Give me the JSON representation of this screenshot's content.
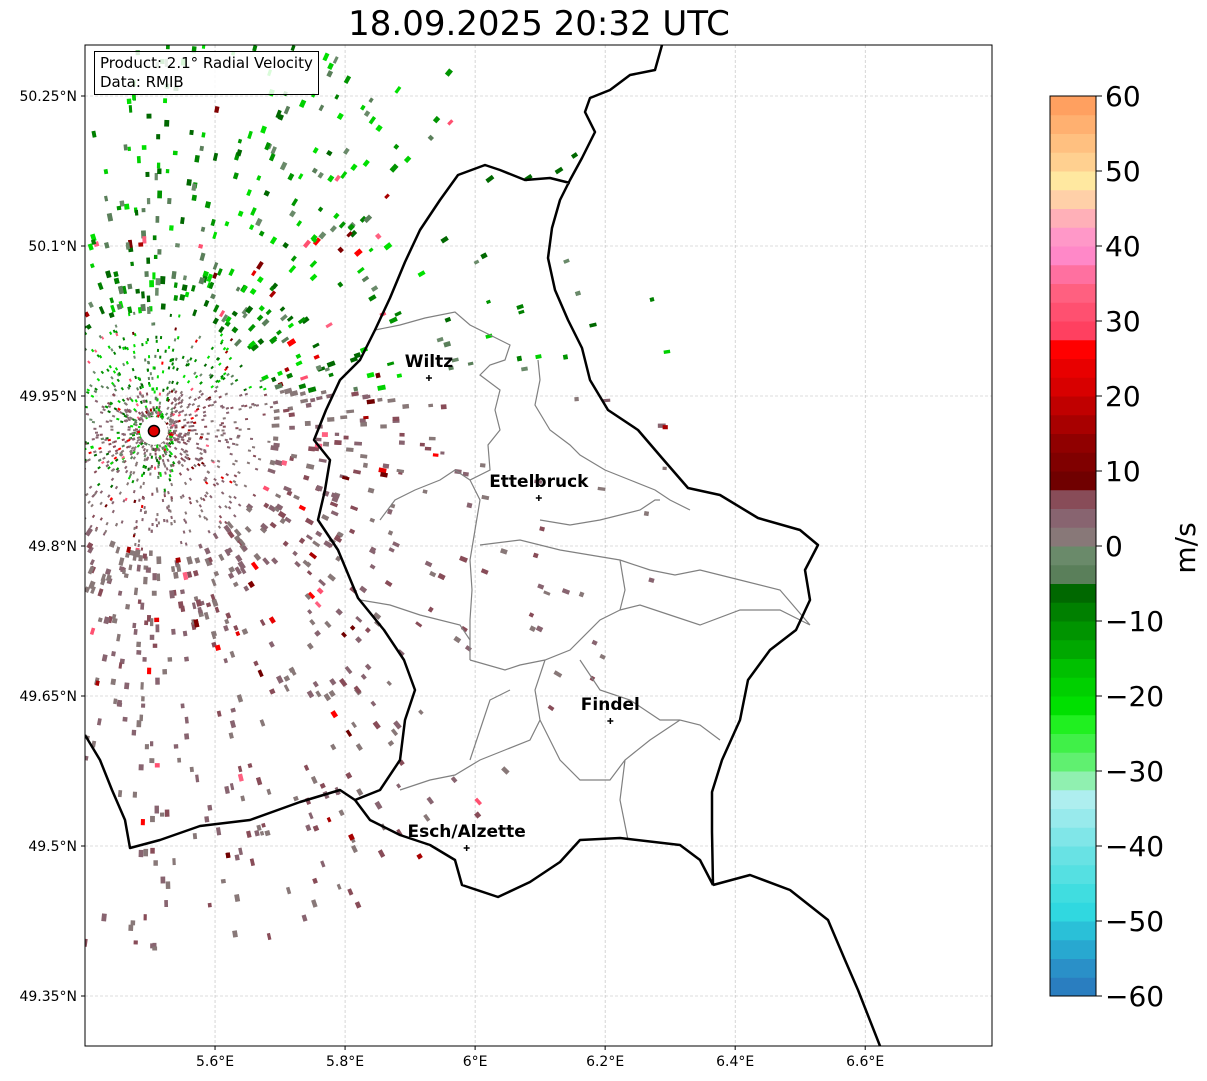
{
  "title": "18.09.2025 20:32 UTC",
  "info": {
    "product": "Product: 2.1° Radial Velocity",
    "data": "Data: RMIB"
  },
  "map": {
    "lon_range": [
      5.4,
      6.795
    ],
    "lat_range": [
      49.3,
      50.301
    ],
    "lon_ticks": [
      {
        "v": 5.6,
        "label": "5.6°E"
      },
      {
        "v": 5.8,
        "label": "5.8°E"
      },
      {
        "v": 6.0,
        "label": "6°E"
      },
      {
        "v": 6.2,
        "label": "6.2°E"
      },
      {
        "v": 6.4,
        "label": "6.4°E"
      },
      {
        "v": 6.6,
        "label": "6.6°E"
      }
    ],
    "lat_ticks": [
      {
        "v": 50.25,
        "label": "50.25°N"
      },
      {
        "v": 50.1,
        "label": "50.1°N"
      },
      {
        "v": 49.95,
        "label": "49.95°N"
      },
      {
        "v": 49.8,
        "label": "49.8°N"
      },
      {
        "v": 49.65,
        "label": "49.65°N"
      },
      {
        "v": 49.5,
        "label": "49.5°N"
      },
      {
        "v": 49.35,
        "label": "49.35°N"
      }
    ],
    "radar_site": {
      "lon": 5.506,
      "lat": 49.915
    },
    "cities": [
      {
        "name": "Wiltz",
        "lon": 5.929,
        "lat": 49.968
      },
      {
        "name": "Ettelbruck",
        "lon": 6.098,
        "lat": 49.848
      },
      {
        "name": "Findel",
        "lon": 6.208,
        "lat": 49.625
      },
      {
        "name": "Esch/Alzette",
        "lon": 5.987,
        "lat": 49.498
      }
    ]
  },
  "colorbar": {
    "label": "m/s",
    "min": -60,
    "max": 60,
    "step": 2.5,
    "ticks": [
      {
        "v": 60,
        "label": "60"
      },
      {
        "v": 50,
        "label": "50"
      },
      {
        "v": 40,
        "label": "40"
      },
      {
        "v": 30,
        "label": "30"
      },
      {
        "v": 20,
        "label": "20"
      },
      {
        "v": 10,
        "label": "10"
      },
      {
        "v": 0,
        "label": "0"
      },
      {
        "v": -10,
        "label": "−10"
      },
      {
        "v": -20,
        "label": "−20"
      },
      {
        "v": -30,
        "label": "−30"
      },
      {
        "v": -40,
        "label": "−40"
      },
      {
        "v": -50,
        "label": "−50"
      },
      {
        "v": -60,
        "label": "−60"
      }
    ],
    "colors": [
      "#2a7ec0",
      "#2a90c8",
      "#28a8d0",
      "#2ac0d8",
      "#30d8e0",
      "#40dde0",
      "#55e0e2",
      "#68e2e4",
      "#80e6e8",
      "#98eaec",
      "#aeeeef",
      "#90f0b0",
      "#60f070",
      "#40f048",
      "#20f020",
      "#00e000",
      "#00d000",
      "#00c000",
      "#00a800",
      "#009400",
      "#008000",
      "#006800",
      "#5a7f5a",
      "#6a8a6a",
      "#887878",
      "#886470",
      "#884c58",
      "#700000",
      "#800000",
      "#900000",
      "#a80000",
      "#c00000",
      "#d80000",
      "#e80000",
      "#ff0000",
      "#ff4060",
      "#ff5070",
      "#ff6080",
      "#ff70a0",
      "#ff88c8",
      "#ff98c8",
      "#ffb0b8",
      "#ffd0a8",
      "#ffe8a0",
      "#ffd090",
      "#ffc080",
      "#ffb070",
      "#ffa060"
    ]
  }
}
